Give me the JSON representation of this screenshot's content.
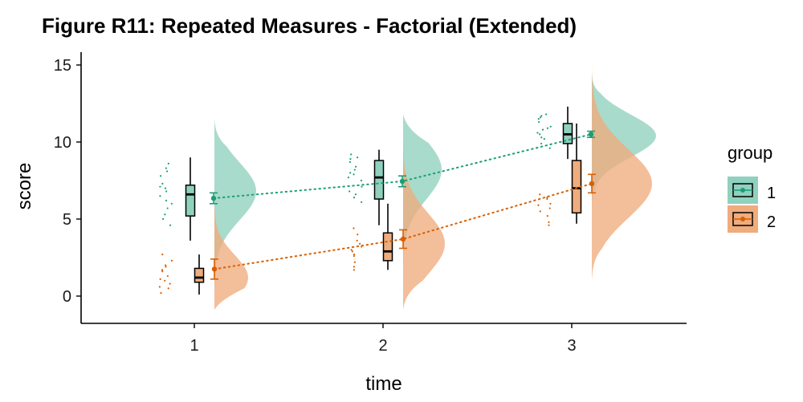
{
  "chart_data": {
    "type": "raincloud",
    "title": "Figure R11: Repeated Measures - Factorial (Extended)",
    "xlabel": "time",
    "ylabel": "score",
    "categories": [
      "1",
      "2",
      "3"
    ],
    "yticks": [
      0,
      5,
      10,
      15
    ],
    "ylim": [
      -1.8,
      16
    ],
    "grid": false,
    "legend": {
      "title": "group",
      "position": "right",
      "entries": [
        "1",
        "2"
      ]
    },
    "series": [
      {
        "name": "1",
        "color": "#1b9e77",
        "fill": "#8fd1bd",
        "means": [
          6.35,
          7.45,
          10.5
        ],
        "ci": [
          [
            6.0,
            6.7
          ],
          [
            7.1,
            7.8
          ],
          [
            10.3,
            10.7
          ]
        ],
        "box": [
          {
            "min": 3.6,
            "q1": 5.2,
            "median": 6.6,
            "q3": 7.2,
            "max": 9.0
          },
          {
            "min": 4.6,
            "q1": 6.3,
            "median": 7.7,
            "q3": 8.8,
            "max": 9.5
          },
          {
            "min": 8.9,
            "q1": 9.9,
            "median": 10.5,
            "q3": 11.2,
            "max": 12.3
          }
        ],
        "density_range": [
          [
            -0.6,
            11.5
          ],
          [
            -0.6,
            11.8
          ],
          [
            5.5,
            14.5
          ]
        ],
        "density_peak": [
          6.8,
          8.2,
          10.4
        ],
        "points": [
          [
            8.3,
            8.1,
            7.8,
            7.3,
            7.0,
            6.8,
            6.5,
            6.0,
            5.7,
            5.3,
            5.0,
            4.6,
            8.6,
            7.1,
            6.2
          ],
          [
            9.2,
            9.0,
            8.7,
            8.4,
            8.2,
            8.0,
            7.7,
            7.5,
            7.1,
            6.8,
            6.4,
            6.1,
            8.9,
            7.9,
            6.6
          ],
          [
            11.8,
            11.6,
            11.3,
            11.0,
            10.8,
            10.5,
            10.2,
            9.9,
            11.5,
            10.9,
            10.3,
            11.7,
            10.6,
            9.6
          ]
        ]
      },
      {
        "name": "2",
        "color": "#d95f02",
        "fill": "#efac7d",
        "means": [
          1.75,
          3.7,
          7.3
        ],
        "ci": [
          [
            1.1,
            2.4
          ],
          [
            3.1,
            4.3
          ],
          [
            6.7,
            7.9
          ]
        ],
        "box": [
          {
            "min": 0.1,
            "q1": 0.9,
            "median": 1.2,
            "q3": 1.8,
            "max": 2.7
          },
          {
            "min": 1.7,
            "q1": 2.3,
            "median": 2.9,
            "q3": 4.1,
            "max": 6.0
          },
          {
            "min": 4.7,
            "q1": 5.4,
            "median": 7.0,
            "q3": 8.8,
            "max": 11.2
          }
        ],
        "density_range": [
          [
            -0.9,
            8.6
          ],
          [
            -0.9,
            11.8
          ],
          [
            0.9,
            15.4
          ]
        ],
        "density_peak": [
          1.2,
          3.4,
          7.3
        ],
        "points": [
          [
            2.7,
            2.3,
            1.9,
            1.6,
            1.3,
            1.0,
            0.8,
            0.5,
            0.2,
            1.7,
            2.0,
            1.1,
            0.6
          ],
          [
            4.4,
            4.0,
            3.6,
            3.2,
            2.9,
            2.6,
            2.2,
            1.9,
            3.4,
            2.7,
            1.7,
            3.0
          ],
          [
            6.6,
            6.3,
            5.9,
            5.5,
            5.2,
            4.8,
            6.0,
            5.7,
            4.6,
            6.4
          ]
        ]
      }
    ]
  }
}
